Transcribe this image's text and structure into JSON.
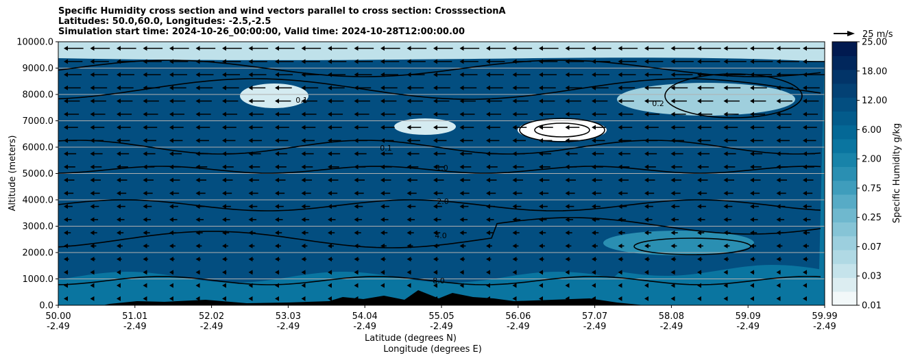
{
  "title_lines": [
    "Specific Humidity cross section and wind vectors parallel to cross section: CrosssectionA",
    "Latitudes: 50.0,60.0, Longitudes: -2.5,-2.5",
    "Simulation start time: 2024-10-26_00:00:00, Valid time: 2024-10-28T12:00:00.00"
  ],
  "chart_data": {
    "type": "heatmap",
    "title": "Specific Humidity cross section and wind vectors parallel to cross section: CrosssectionA",
    "ylabel": "Altitude (meters)",
    "xlabel_lines": [
      "Latitude (degrees N)",
      "Longitude (degrees E)"
    ],
    "ylim": [
      0,
      10000
    ],
    "y_ticks": [
      "0.0",
      "1000.0",
      "2000.0",
      "3000.0",
      "4000.0",
      "5000.0",
      "6000.0",
      "7000.0",
      "8000.0",
      "9000.0",
      "10000.0"
    ],
    "x_ticks": [
      {
        "lat": "50.00",
        "lon": "-2.49"
      },
      {
        "lat": "51.01",
        "lon": "-2.49"
      },
      {
        "lat": "52.02",
        "lon": "-2.49"
      },
      {
        "lat": "53.03",
        "lon": "-2.49"
      },
      {
        "lat": "54.04",
        "lon": "-2.49"
      },
      {
        "lat": "55.05",
        "lon": "-2.49"
      },
      {
        "lat": "56.06",
        "lon": "-2.49"
      },
      {
        "lat": "57.07",
        "lon": "-2.49"
      },
      {
        "lat": "58.08",
        "lon": "-2.49"
      },
      {
        "lat": "59.09",
        "lon": "-2.49"
      },
      {
        "lat": "59.99",
        "lon": "-2.49"
      }
    ],
    "colorbar": {
      "label": "Specific Humidity g/kg",
      "ticks": [
        "0.01",
        "0.03",
        "0.07",
        "0.25",
        "0.75",
        "2.00",
        "6.00",
        "12.00",
        "18.00",
        "25.00"
      ],
      "levels": [
        "0.01",
        "0.02",
        "0.03",
        "0.05",
        "0.07",
        "0.1",
        "0.25",
        "0.5",
        "0.75",
        "1.0",
        "2.00",
        "4.0",
        "6.00",
        "8.0",
        "12.00",
        "15.0",
        "18.00",
        "21.0",
        "25.00"
      ],
      "colors": [
        "#f2f8f9",
        "#dcedf1",
        "#c5e3eb",
        "#b0d9e4",
        "#9ccfde",
        "#86c4d6",
        "#6fb8ce",
        "#57abc6",
        "#3f9dbc",
        "#2a8fb2",
        "#1883a9",
        "#0a75a0",
        "#046896",
        "#035b8b",
        "#034e80",
        "#034174",
        "#023468",
        "#01275c",
        "#011a50"
      ]
    },
    "contour_levels": [
      "0.1",
      "0.2",
      "1.0",
      "2.0",
      "4.0",
      "8.0"
    ],
    "quiver_key": {
      "label": "25 m/s",
      "value": 25,
      "units": "m/s"
    },
    "wind_direction": "southward (towards 50.0N)",
    "grid": "horizontal lines at y ticks",
    "terrain": "black filled orography near surface, peaks below 500 m"
  }
}
